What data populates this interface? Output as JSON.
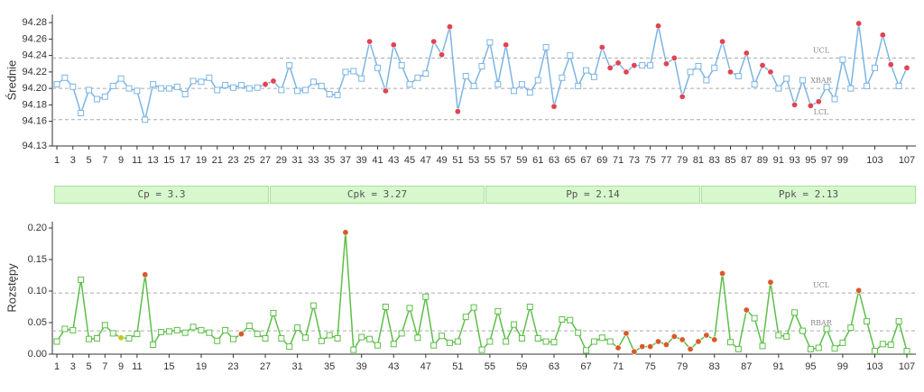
{
  "chart_data": [
    {
      "type": "line",
      "y_label": "Średnie",
      "color": "#7cb5e4",
      "marker_color": "#7cb5e4",
      "highlights": [
        {
          "color": "#e04452",
          "x": [
            27,
            28,
            40,
            42,
            43,
            48,
            49,
            50,
            51,
            57,
            63,
            69,
            70,
            71,
            72,
            73,
            76,
            77,
            78,
            79,
            84,
            85,
            87,
            89,
            90,
            93,
            95,
            96,
            101,
            104,
            105,
            107
          ]
        }
      ],
      "x": [
        1,
        2,
        3,
        4,
        5,
        6,
        7,
        8,
        9,
        10,
        11,
        12,
        13,
        14,
        15,
        16,
        17,
        18,
        19,
        20,
        21,
        22,
        23,
        24,
        25,
        26,
        27,
        28,
        29,
        30,
        31,
        32,
        33,
        34,
        35,
        36,
        37,
        38,
        39,
        40,
        41,
        42,
        43,
        44,
        45,
        46,
        47,
        48,
        49,
        50,
        51,
        52,
        53,
        54,
        55,
        56,
        57,
        58,
        59,
        60,
        61,
        62,
        63,
        64,
        65,
        66,
        67,
        68,
        69,
        70,
        71,
        72,
        73,
        74,
        75,
        76,
        77,
        78,
        79,
        80,
        81,
        82,
        83,
        84,
        85,
        86,
        87,
        88,
        89,
        90,
        91,
        92,
        93,
        94,
        95,
        96,
        97,
        98,
        99,
        100,
        101,
        102,
        103,
        104,
        105,
        106,
        107
      ],
      "values": [
        94.205,
        94.213,
        94.202,
        94.17,
        94.198,
        94.187,
        94.19,
        94.203,
        94.212,
        94.2,
        94.197,
        94.162,
        94.205,
        94.2,
        94.2,
        94.202,
        94.193,
        94.209,
        94.208,
        94.213,
        94.198,
        94.204,
        94.201,
        94.204,
        94.2,
        94.201,
        94.205,
        94.209,
        94.198,
        94.228,
        94.197,
        94.198,
        94.208,
        94.203,
        94.193,
        94.192,
        94.22,
        94.221,
        94.212,
        94.257,
        94.225,
        94.197,
        94.253,
        94.228,
        94.205,
        94.213,
        94.218,
        94.257,
        94.241,
        94.275,
        94.172,
        94.215,
        94.203,
        94.227,
        94.256,
        94.205,
        94.253,
        94.197,
        94.205,
        94.195,
        94.21,
        94.25,
        94.178,
        94.213,
        94.24,
        94.203,
        94.222,
        94.214,
        94.25,
        94.225,
        94.231,
        94.22,
        94.228,
        94.228,
        94.228,
        94.276,
        94.23,
        94.237,
        94.19,
        94.22,
        94.227,
        94.21,
        94.225,
        94.257,
        94.22,
        94.215,
        94.243,
        94.205,
        94.228,
        94.22,
        94.2,
        94.212,
        94.18,
        94.21,
        94.179,
        94.184,
        94.202,
        94.187,
        94.235,
        94.2,
        94.279,
        94.203,
        94.225,
        94.265,
        94.229,
        94.203,
        94.225
      ],
      "limits": [
        {
          "label": "UCL",
          "value": 94.237
        },
        {
          "label": "XBAR",
          "value": 94.2
        },
        {
          "label": "LCL",
          "value": 94.162
        }
      ],
      "xlim": [
        1,
        107
      ],
      "xticks": [
        1,
        3,
        5,
        7,
        9,
        11,
        13,
        15,
        17,
        19,
        21,
        23,
        25,
        27,
        29,
        31,
        33,
        35,
        37,
        39,
        41,
        43,
        45,
        47,
        49,
        51,
        53,
        55,
        57,
        59,
        61,
        63,
        65,
        67,
        69,
        71,
        73,
        75,
        77,
        79,
        81,
        83,
        85,
        87,
        89,
        91,
        93,
        95,
        97,
        99,
        103,
        107
      ],
      "ylim": [
        94.13,
        94.29
      ],
      "yticks": [
        94.13,
        94.16,
        94.18,
        {
          "value": 94.2,
          "label": "94.20"
        },
        94.22,
        94.24,
        94.26,
        94.28
      ]
    },
    {
      "type": "line",
      "y_label": "Rozstępy",
      "color": "#5cbf48",
      "marker_color": "#5cbf48",
      "highlights": [
        {
          "color": "#d95a2b",
          "x": [
            12,
            24,
            37,
            71,
            72,
            73,
            74,
            75,
            76,
            77,
            78,
            79,
            80,
            81,
            82,
            83,
            84,
            87,
            90,
            101
          ]
        },
        {
          "color": "#c9c41e",
          "x": [
            9
          ]
        }
      ],
      "x": [
        1,
        2,
        3,
        4,
        5,
        6,
        7,
        8,
        9,
        10,
        11,
        12,
        13,
        14,
        15,
        16,
        17,
        18,
        19,
        20,
        21,
        22,
        23,
        24,
        25,
        26,
        27,
        28,
        29,
        30,
        31,
        32,
        33,
        34,
        35,
        36,
        37,
        38,
        39,
        40,
        41,
        42,
        43,
        44,
        45,
        46,
        47,
        48,
        49,
        50,
        51,
        52,
        53,
        54,
        55,
        56,
        57,
        58,
        59,
        60,
        61,
        62,
        63,
        64,
        65,
        66,
        67,
        68,
        69,
        70,
        71,
        72,
        73,
        74,
        75,
        76,
        77,
        78,
        79,
        80,
        81,
        82,
        83,
        84,
        85,
        86,
        87,
        88,
        89,
        90,
        91,
        92,
        93,
        94,
        95,
        96,
        97,
        98,
        99,
        100,
        101,
        102,
        103,
        104,
        105,
        106,
        107
      ],
      "values": [
        0.02,
        0.04,
        0.038,
        0.118,
        0.024,
        0.025,
        0.046,
        0.033,
        0.026,
        0.025,
        0.032,
        0.126,
        0.015,
        0.035,
        0.036,
        0.038,
        0.034,
        0.043,
        0.038,
        0.034,
        0.021,
        0.038,
        0.024,
        0.032,
        0.045,
        0.032,
        0.025,
        0.065,
        0.025,
        0.012,
        0.042,
        0.026,
        0.077,
        0.021,
        0.03,
        0.025,
        0.193,
        0.007,
        0.027,
        0.024,
        0.014,
        0.075,
        0.016,
        0.033,
        0.073,
        0.026,
        0.091,
        0.014,
        0.029,
        0.018,
        0.02,
        0.059,
        0.074,
        0.007,
        0.02,
        0.068,
        0.02,
        0.047,
        0.025,
        0.075,
        0.025,
        0.02,
        0.019,
        0.055,
        0.054,
        0.034,
        0.006,
        0.02,
        0.026,
        0.02,
        0.01,
        0.033,
        0.004,
        0.012,
        0.012,
        0.02,
        0.015,
        0.028,
        0.023,
        0.008,
        0.02,
        0.03,
        0.023,
        0.128,
        0.019,
        0.008,
        0.07,
        0.057,
        0.013,
        0.114,
        0.03,
        0.028,
        0.066,
        0.037,
        0.008,
        0.01,
        0.04,
        0.009,
        0.018,
        0.042,
        0.101,
        0.052,
        0.005,
        0.016,
        0.015,
        0.052,
        0.005
      ],
      "limits": [
        {
          "label": "UCL",
          "value": 0.097
        },
        {
          "label": "RBAR",
          "value": 0.037
        }
      ],
      "xlim": [
        1,
        107
      ],
      "xticks": [
        1,
        3,
        5,
        7,
        9,
        11,
        15,
        19,
        23,
        27,
        31,
        35,
        39,
        43,
        47,
        51,
        55,
        59,
        63,
        67,
        71,
        75,
        79,
        83,
        87,
        91,
        95,
        99,
        103,
        107
      ],
      "ylim": [
        0,
        0.21
      ],
      "yticks": [
        {
          "value": 0,
          "label": "0.00"
        },
        {
          "value": 0.05,
          "label": "0.05"
        },
        {
          "value": 0.1,
          "label": "0.10"
        },
        {
          "value": 0.15,
          "label": "0.15"
        },
        {
          "value": 0.2,
          "label": "0.20"
        }
      ]
    }
  ],
  "capability": [
    "Cp = 3.3",
    "Cpk = 3.27",
    "Pp = 2.14",
    "Ppk = 2.13"
  ]
}
